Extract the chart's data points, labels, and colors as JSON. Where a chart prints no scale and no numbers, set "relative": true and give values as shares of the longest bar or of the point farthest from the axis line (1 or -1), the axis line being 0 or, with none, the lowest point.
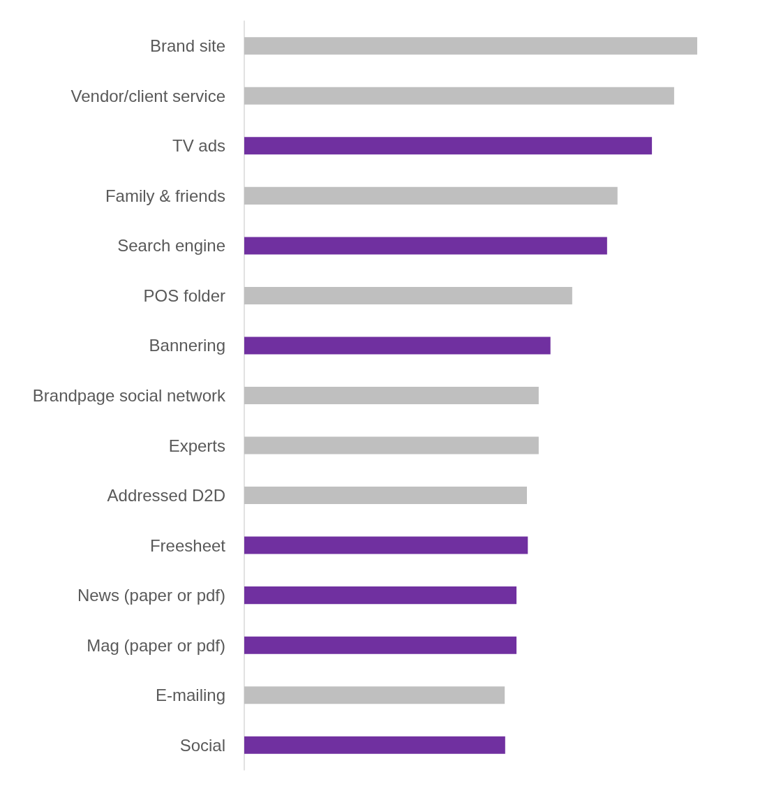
{
  "chart_data": {
    "type": "bar",
    "orientation": "horizontal",
    "relative": true,
    "categories": [
      "Brand site",
      "Vendor/client service",
      "TV ads",
      "Family & friends",
      "Search engine",
      "POS folder",
      "Bannering",
      "Brandpage social network",
      "Experts",
      "Addressed D2D",
      "Freesheet",
      "News (paper or pdf)",
      "Mag (paper or pdf)",
      "E-mailing",
      "Social"
    ],
    "values": [
      1,
      0.949,
      0.9,
      0.824,
      0.801,
      0.724,
      0.676,
      0.65,
      0.65,
      0.624,
      0.626,
      0.601,
      0.601,
      0.575,
      0.576
    ],
    "colors": [
      "#bfbfbf",
      "#bfbfbf",
      "#7030a0",
      "#bfbfbf",
      "#7030a0",
      "#bfbfbf",
      "#7030a0",
      "#bfbfbf",
      "#bfbfbf",
      "#bfbfbf",
      "#7030a0",
      "#7030a0",
      "#7030a0",
      "#bfbfbf",
      "#7030a0"
    ],
    "data_labels": false
  }
}
